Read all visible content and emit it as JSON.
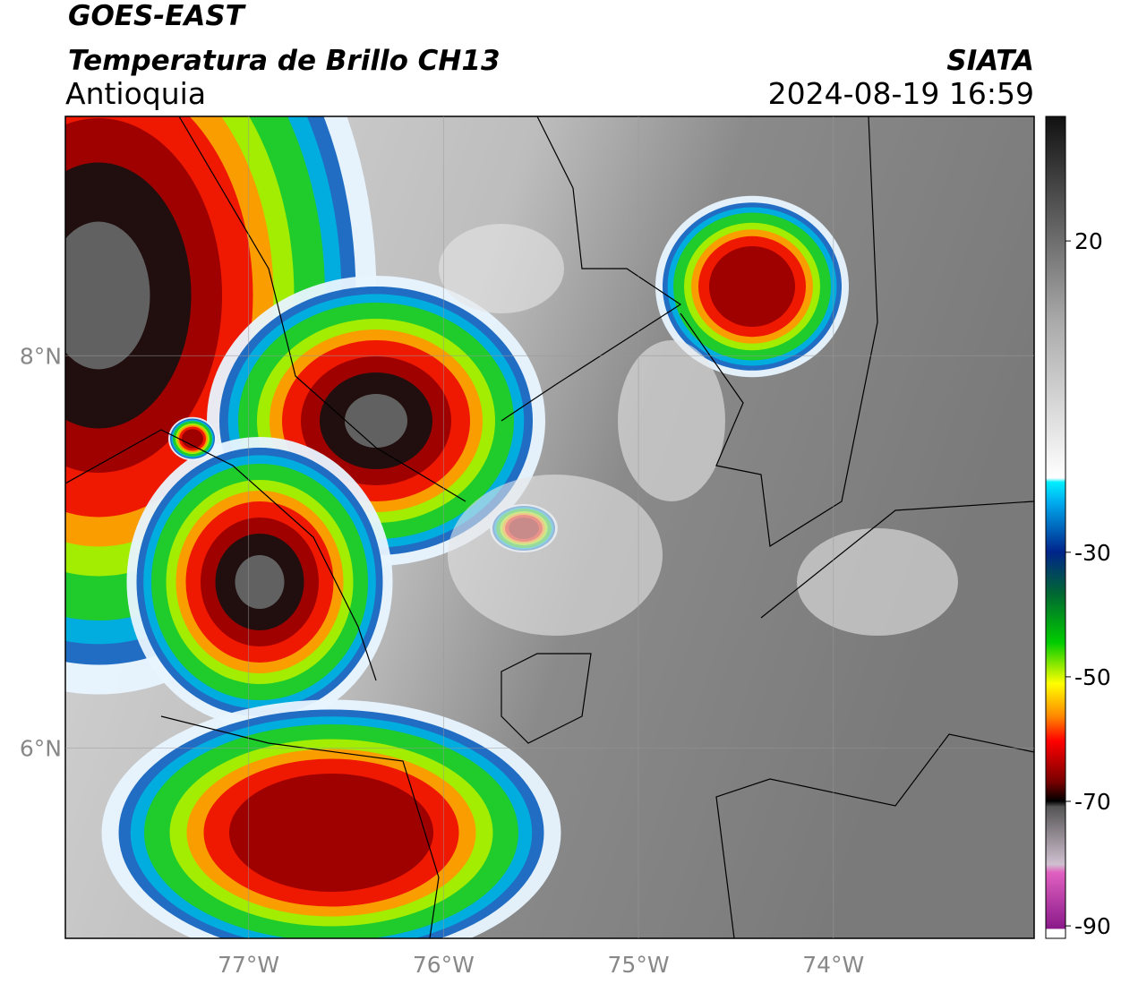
{
  "header": {
    "title": "GOES-EAST",
    "subtitle": "Temperatura de Brillo CH13",
    "region": "Antioquia",
    "source": "SIATA",
    "datetime": "2024-08-19 16:59"
  },
  "map": {
    "xlim": [
      -77.94,
      -72.97
    ],
    "ylim": [
      5.03,
      9.22
    ],
    "xticks": [
      {
        "value": -77,
        "label": "77°W"
      },
      {
        "value": -76,
        "label": "76°W"
      },
      {
        "value": -75,
        "label": "75°W"
      },
      {
        "value": -74,
        "label": "74°W"
      }
    ],
    "yticks": [
      {
        "value": 8,
        "label": "8°N"
      },
      {
        "value": 6,
        "label": "6°N"
      }
    ],
    "grid": true
  },
  "colorbar": {
    "lim": [
      -92,
      40
    ],
    "ticks": [
      20,
      -30,
      -50,
      -70,
      -90
    ]
  }
}
